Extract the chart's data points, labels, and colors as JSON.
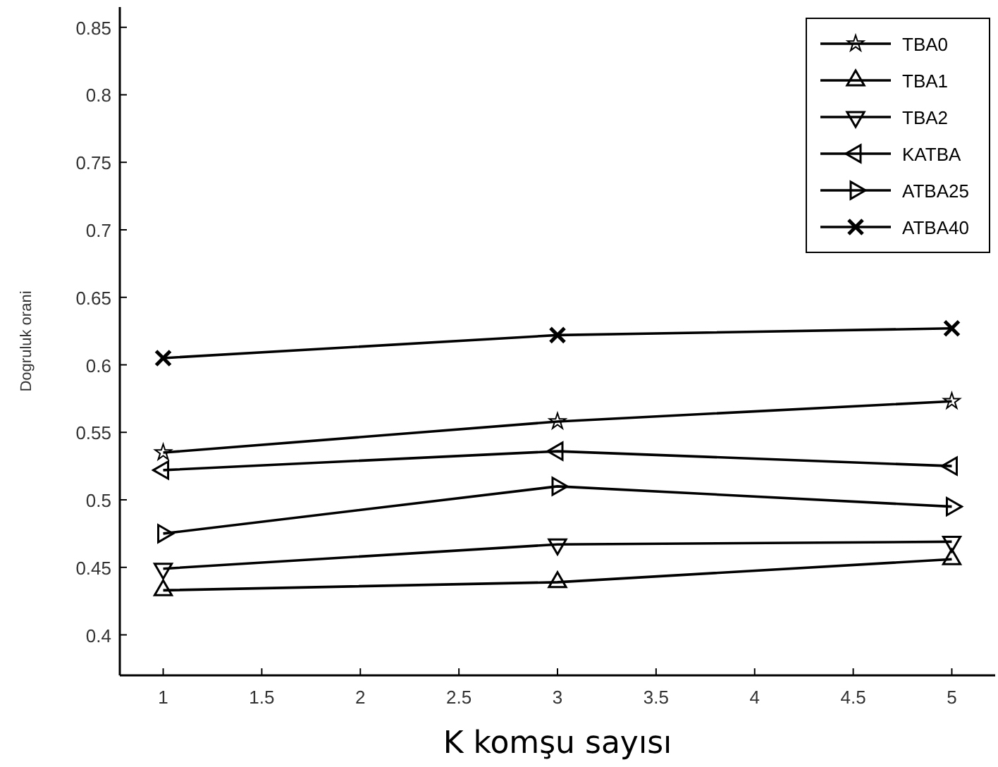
{
  "chart_data": {
    "type": "line",
    "xlabel": "K komşu sayısı",
    "ylabel": "Dogruluk orani",
    "x": [
      1,
      3,
      5
    ],
    "xlim": [
      0.78,
      5.22
    ],
    "xticks": [
      1,
      1.5,
      2,
      2.5,
      3,
      3.5,
      4,
      4.5,
      5
    ],
    "ylim": [
      0.37,
      0.865
    ],
    "yticks": [
      0.4,
      0.45,
      0.5,
      0.55,
      0.6,
      0.65,
      0.7,
      0.75,
      0.8,
      0.85
    ],
    "grid": false,
    "legend": "top right",
    "line_style": "solid",
    "series": [
      {
        "name": "TBA0",
        "color": "#000000",
        "marker": "star",
        "values": [
          0.535,
          0.558,
          0.573
        ]
      },
      {
        "name": "TBA1",
        "color": "#000000",
        "marker": "triangle",
        "values": [
          0.433,
          0.439,
          0.456
        ]
      },
      {
        "name": "TBA2",
        "color": "#000000",
        "marker": "triangle-down",
        "values": [
          0.449,
          0.467,
          0.469
        ]
      },
      {
        "name": "KATBA",
        "color": "#000000",
        "marker": "triangle-left",
        "values": [
          0.522,
          0.536,
          0.525
        ]
      },
      {
        "name": "ATBA25",
        "color": "#000000",
        "marker": "triangle-right",
        "values": [
          0.475,
          0.51,
          0.495
        ]
      },
      {
        "name": "ATBA40",
        "color": "#000000",
        "marker": "cross",
        "values": [
          0.605,
          0.622,
          0.627
        ]
      }
    ]
  }
}
